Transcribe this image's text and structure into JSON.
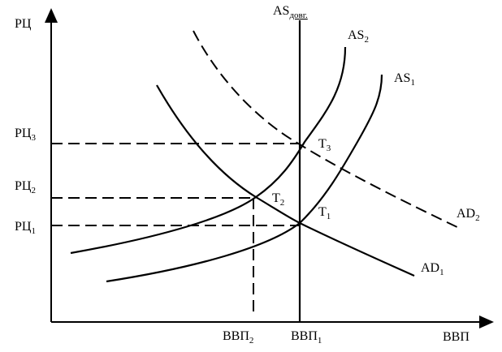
{
  "axes": {
    "y_label": "РЦ",
    "x_label": "ВВП"
  },
  "curves": {
    "as_long": {
      "text": "AS",
      "sub": "довг."
    },
    "as2": {
      "text": "AS",
      "sub": "2"
    },
    "as1": {
      "text": "AS",
      "sub": "1"
    },
    "ad2": {
      "text": "AD",
      "sub": "2"
    },
    "ad1": {
      "text": "AD",
      "sub": "1"
    }
  },
  "price_levels": [
    {
      "text": "РЦ",
      "sub": "3"
    },
    {
      "text": "РЦ",
      "sub": "2"
    },
    {
      "text": "РЦ",
      "sub": "1"
    }
  ],
  "output_levels": [
    {
      "text": "ВВП",
      "sub": "2"
    },
    {
      "text": "ВВП",
      "sub": "1"
    }
  ],
  "points": [
    {
      "text": "Т",
      "sub": "3"
    },
    {
      "text": "Т",
      "sub": "2"
    },
    {
      "text": "Т",
      "sub": "1"
    }
  ]
}
